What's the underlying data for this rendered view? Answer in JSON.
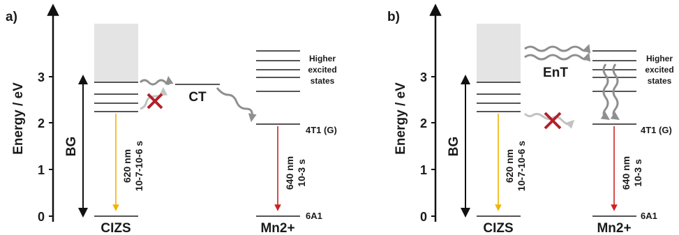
{
  "panels": [
    {
      "panel_label": "a)",
      "axis_title": "Energy / eV",
      "ticks": [
        "0",
        "1",
        "2",
        "3"
      ],
      "bandgap_label": "BG",
      "host_label": "CIZS",
      "host_emission": {
        "wavelength": "620 nm",
        "lifetime": "10-7-10-6 s"
      },
      "transfer_label": "CT",
      "dopant_label": "Mn2+",
      "dopant_upper_label": "4T1 (G)",
      "dopant_ground_label": "6A1",
      "dopant_higher_label": [
        "Higher",
        "excited",
        "states"
      ],
      "dopant_emission": {
        "wavelength": "640 nm",
        "lifetime": "10-3 s"
      }
    },
    {
      "panel_label": "b)",
      "axis_title": "Energy / eV",
      "ticks": [
        "0",
        "1",
        "2",
        "3"
      ],
      "bandgap_label": "BG",
      "host_label": "CIZS",
      "host_emission": {
        "wavelength": "620 nm",
        "lifetime": "10-7-10-6 s"
      },
      "transfer_label": "EnT",
      "dopant_label": "Mn2+",
      "dopant_upper_label": "4T1 (G)",
      "dopant_ground_label": "6A1",
      "dopant_higher_label": [
        "Higher",
        "excited",
        "states"
      ],
      "dopant_emission": {
        "wavelength": "640 nm",
        "lifetime": "10-3 s"
      }
    }
  ],
  "colors": {
    "host_emission": "#f0b400",
    "dopant_emission": "#d01f1f",
    "blocked_cross": "#b3202a",
    "transfer_arrow": "#8f8f8f",
    "band_fill": "#e4e4e4",
    "level": "#555555"
  }
}
